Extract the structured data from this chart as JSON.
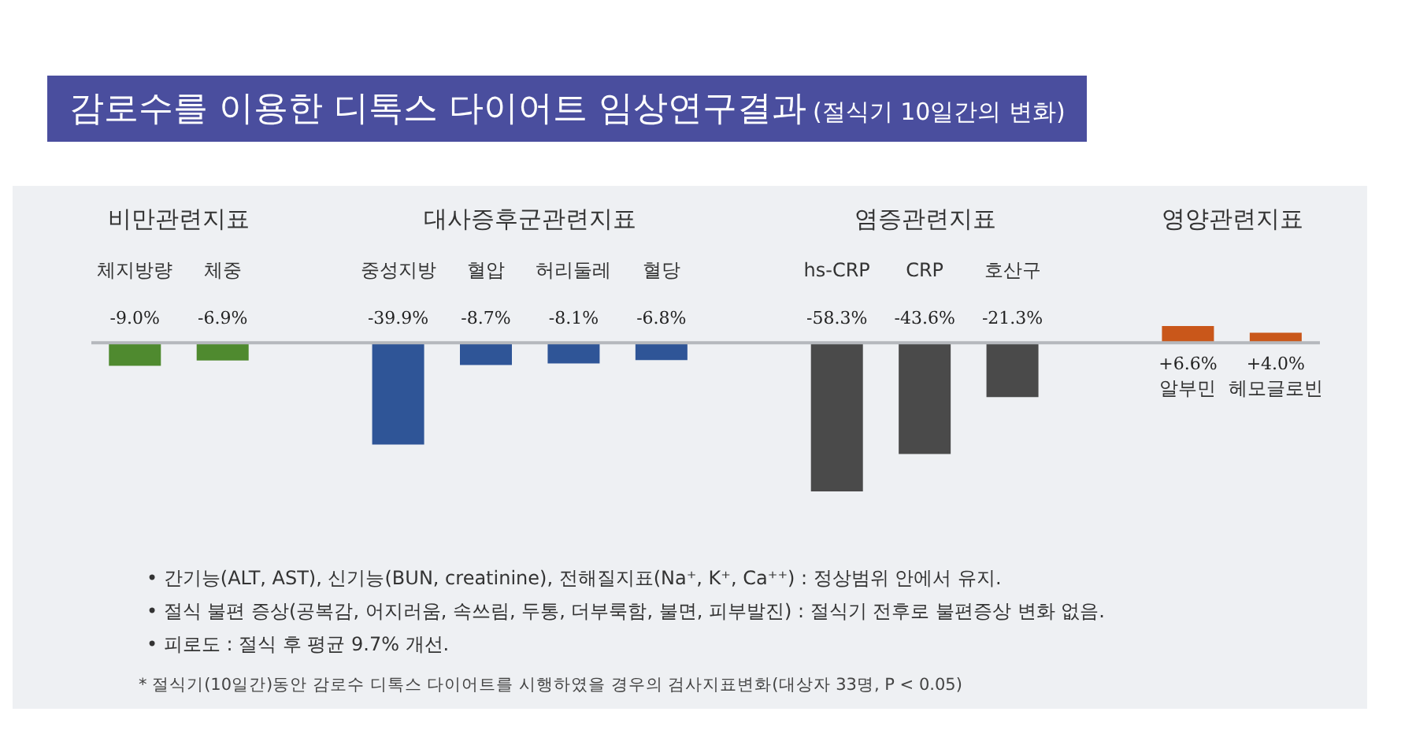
{
  "chart_data": {
    "type": "bar",
    "title": "감로수를 이용한 디톡스 다이어트 임상연구결과",
    "subtitle": "(절식기 10일간의 변화)",
    "categories": [
      "체지방량",
      "체중",
      null,
      "중성지방",
      "혈압",
      "허리둘레",
      "혈당",
      null,
      "hs-CRP",
      "CRP",
      "호산구",
      null,
      "알부민",
      "헤모글로빈"
    ],
    "values": [
      -9.0,
      -6.9,
      null,
      -39.9,
      -8.7,
      -8.1,
      -6.8,
      null,
      -58.3,
      -43.6,
      -21.3,
      null,
      6.6,
      4.0
    ],
    "colors": [
      "#4f8a2f",
      "#4f8a2f",
      null,
      "#2f5597",
      "#2f5597",
      "#2f5597",
      "#2f5597",
      null,
      "#4a4a4a",
      "#4a4a4a",
      "#4a4a4a",
      null,
      "#c9571a",
      "#c9571a"
    ],
    "value_labels": [
      "-9.0%",
      "-6.9%",
      null,
      "-39.9%",
      "-8.7%",
      "-8.1%",
      "-6.8%",
      null,
      "-58.3%",
      "-43.6%",
      "-21.3%",
      null,
      "+6.6%",
      "+4.0%"
    ],
    "annotations": [
      "비만관련지표",
      "대사증후군관련지표",
      "염증관련지표",
      "영양관련지표",
      "• 간기능(ALT, AST), 신기능(BUN, creatinine), 전해질지표(Na⁺, K⁺, Ca⁺⁺) : 정상범위 안에서 유지.",
      "• 절식 불편 증상(공복감, 어지러움, 속쓰림, 두통, 더부룩함, 불면, 피부발진) : 절식기 전후로 불편증상 변화 없음.",
      "• 피로도 : 절식 후 평균 9.7% 개선.",
      "* 절식기(10일간)동안 감로수 디톡스 다이어트를  시행하였을 경우의 검사지표변화(대상자 33명, P < 0.05)"
    ],
    "legend": false
  }
}
